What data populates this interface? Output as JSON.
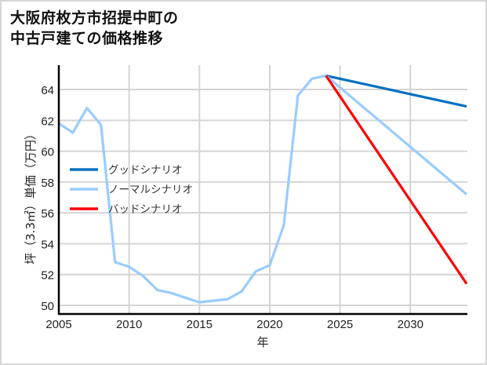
{
  "title_line1": "大阪府枚方市招提中町の",
  "title_line2": "中古戸建ての価格推移",
  "chart_data": {
    "type": "line",
    "title": "大阪府枚方市招提中町の中古戸建ての価格推移",
    "xlabel": "年",
    "ylabel": "坪（3.3㎡）単価（万円）",
    "xlim": [
      2005,
      2034
    ],
    "ylim": [
      49.5,
      65.5
    ],
    "xticks": [
      2005,
      2010,
      2015,
      2020,
      2025,
      2030
    ],
    "yticks": [
      50,
      52,
      54,
      56,
      58,
      60,
      62,
      64
    ],
    "grid": true,
    "legend_position": "center-left",
    "series": [
      {
        "name": "グッドシナリオ",
        "color": "#0070c0",
        "x": [
          2024,
          2034
        ],
        "values": [
          64.9,
          62.9
        ]
      },
      {
        "name": "ノーマルシナリオ",
        "color": "#99ccff",
        "x": [
          2005,
          2006,
          2007,
          2008,
          2009,
          2010,
          2011,
          2012,
          2013,
          2014,
          2015,
          2016,
          2017,
          2018,
          2019,
          2020,
          2021,
          2022,
          2023,
          2024,
          2034
        ],
        "values": [
          61.8,
          61.2,
          62.8,
          61.7,
          52.8,
          52.5,
          51.9,
          51.0,
          50.8,
          50.5,
          50.2,
          50.3,
          50.4,
          50.9,
          52.2,
          52.6,
          55.2,
          63.6,
          64.7,
          64.9,
          57.2
        ]
      },
      {
        "name": "バッドシナリオ",
        "color": "#ff0000",
        "x": [
          2024,
          2034
        ],
        "values": [
          64.9,
          51.4
        ]
      }
    ]
  }
}
